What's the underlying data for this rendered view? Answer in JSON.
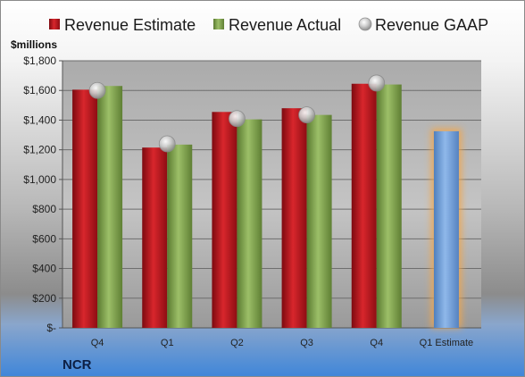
{
  "company": "NCR",
  "unit_label": "$millions",
  "colors": {
    "estimate": "#c0141c",
    "actual": "#7fa14a",
    "gaap": "#bdbdbd",
    "forecast": "#6f9fd8",
    "forecast_glow": "#f3a64a"
  },
  "chart_data": {
    "type": "bar",
    "title": "",
    "xlabel": "",
    "ylabel": "$millions",
    "ylim": [
      0,
      1800
    ],
    "yticks": [
      0,
      200,
      400,
      600,
      800,
      1000,
      1200,
      1400,
      1600,
      1800
    ],
    "ytick_labels": [
      "$-",
      "$200",
      "$400",
      "$600",
      "$800",
      "$1,000",
      "$1,200",
      "$1,400",
      "$1,600",
      "$1,800"
    ],
    "grid": true,
    "legend_position": "top",
    "categories": [
      "Q4",
      "Q1",
      "Q2",
      "Q3",
      "Q4",
      "Q1 Estimate"
    ],
    "series": [
      {
        "name": "Revenue Estimate",
        "kind": "bar",
        "values": [
          1605,
          1215,
          1455,
          1480,
          1645,
          null
        ]
      },
      {
        "name": "Revenue Actual",
        "kind": "bar",
        "values": [
          1630,
          1235,
          1405,
          1435,
          1640,
          null
        ]
      },
      {
        "name": "Revenue GAAP",
        "kind": "marker",
        "values": [
          1600,
          1240,
          1410,
          1435,
          1650,
          null
        ]
      },
      {
        "name": "",
        "kind": "bar",
        "values": [
          null,
          null,
          null,
          null,
          null,
          1325
        ]
      }
    ]
  }
}
